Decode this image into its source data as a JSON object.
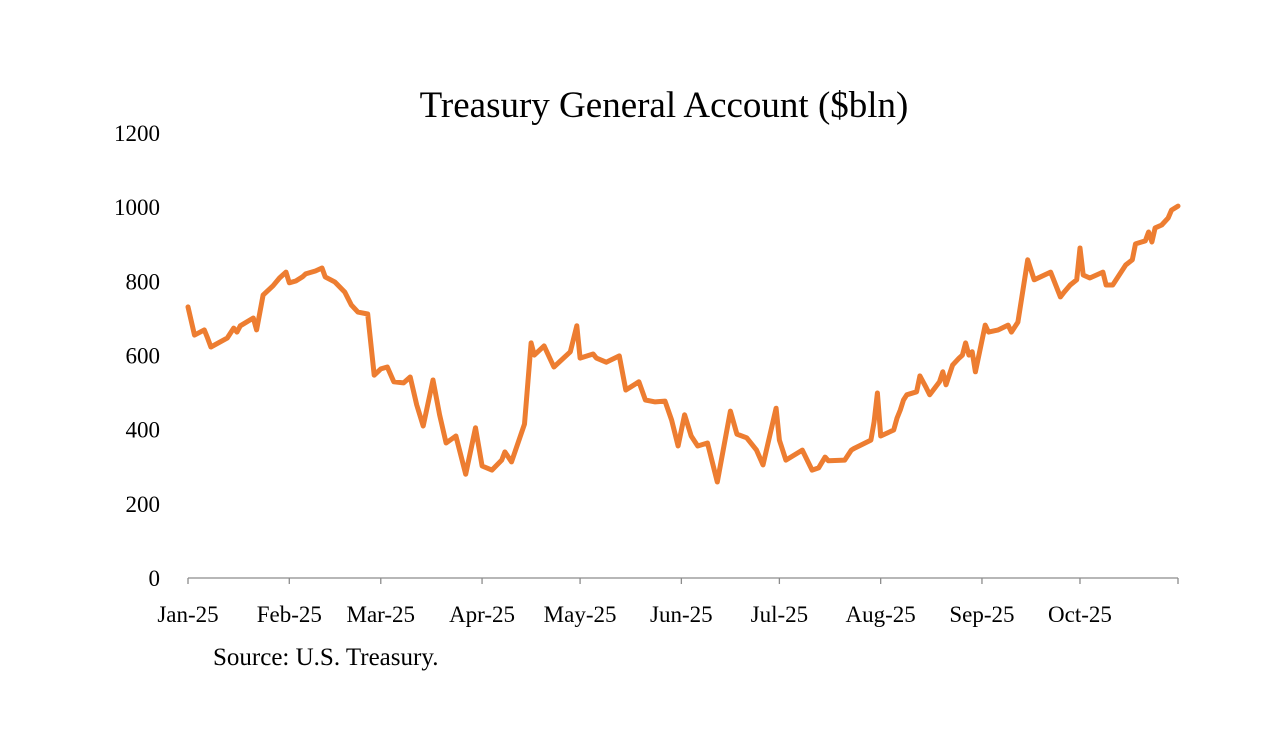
{
  "chart_data": {
    "type": "line",
    "title": "Treasury General Account ($bln)",
    "xlabel": "",
    "ylabel": "",
    "source": "Source: U.S. Treasury.",
    "ylim": [
      0,
      1200
    ],
    "yticks": [
      0,
      200,
      400,
      600,
      800,
      1000,
      1200
    ],
    "xlim": [
      "2025-01-01",
      "2025-10-31"
    ],
    "xticks": [
      {
        "date": "2025-01-01",
        "label": "Jan-25"
      },
      {
        "date": "2025-02-01",
        "label": "Feb-25"
      },
      {
        "date": "2025-03-01",
        "label": "Mar-25"
      },
      {
        "date": "2025-04-01",
        "label": "Apr-25"
      },
      {
        "date": "2025-05-01",
        "label": "May-25"
      },
      {
        "date": "2025-06-01",
        "label": "Jun-25"
      },
      {
        "date": "2025-07-01",
        "label": "Jul-25"
      },
      {
        "date": "2025-08-01",
        "label": "Aug-25"
      },
      {
        "date": "2025-09-01",
        "label": "Sep-25"
      },
      {
        "date": "2025-10-01",
        "label": "Oct-25"
      }
    ],
    "grid": false,
    "legend": "none",
    "line_color": "#ED7D31",
    "series": [
      {
        "points": [
          [
            "2025-01-01",
            731
          ],
          [
            "2025-01-03",
            655
          ],
          [
            "2025-01-06",
            669
          ],
          [
            "2025-01-07",
            647
          ],
          [
            "2025-01-08",
            623
          ],
          [
            "2025-01-13",
            647
          ],
          [
            "2025-01-15",
            674
          ],
          [
            "2025-01-16",
            663
          ],
          [
            "2025-01-17",
            680
          ],
          [
            "2025-01-21",
            701
          ],
          [
            "2025-01-22",
            669
          ],
          [
            "2025-01-24",
            763
          ],
          [
            "2025-01-27",
            788
          ],
          [
            "2025-01-29",
            809
          ],
          [
            "2025-01-30",
            817
          ],
          [
            "2025-01-31",
            825
          ],
          [
            "2025-02-01",
            796
          ],
          [
            "2025-02-03",
            801
          ],
          [
            "2025-02-05",
            812
          ],
          [
            "2025-02-06",
            820
          ],
          [
            "2025-02-09",
            828
          ],
          [
            "2025-02-11",
            836
          ],
          [
            "2025-02-12",
            812
          ],
          [
            "2025-02-15",
            798
          ],
          [
            "2025-02-18",
            771
          ],
          [
            "2025-02-20",
            736
          ],
          [
            "2025-02-22",
            717
          ],
          [
            "2025-02-25",
            712
          ],
          [
            "2025-02-27",
            547
          ],
          [
            "2025-03-01",
            564
          ],
          [
            "2025-03-03",
            569
          ],
          [
            "2025-03-05",
            529
          ],
          [
            "2025-03-08",
            526
          ],
          [
            "2025-03-10",
            542
          ],
          [
            "2025-03-12",
            467
          ],
          [
            "2025-03-14",
            410
          ],
          [
            "2025-03-17",
            534
          ],
          [
            "2025-03-19",
            440
          ],
          [
            "2025-03-21",
            364
          ],
          [
            "2025-03-24",
            383
          ],
          [
            "2025-03-27",
            280
          ],
          [
            "2025-03-30",
            405
          ],
          [
            "2025-04-01",
            302
          ],
          [
            "2025-04-04",
            291
          ],
          [
            "2025-04-07",
            318
          ],
          [
            "2025-04-08",
            340
          ],
          [
            "2025-04-10",
            313
          ],
          [
            "2025-04-14",
            415
          ],
          [
            "2025-04-16",
            634
          ],
          [
            "2025-04-17",
            601
          ],
          [
            "2025-04-20",
            626
          ],
          [
            "2025-04-23",
            569
          ],
          [
            "2025-04-28",
            610
          ],
          [
            "2025-04-30",
            680
          ],
          [
            "2025-05-01",
            593
          ],
          [
            "2025-05-05",
            604
          ],
          [
            "2025-05-06",
            593
          ],
          [
            "2025-05-09",
            582
          ],
          [
            "2025-05-13",
            599
          ],
          [
            "2025-05-15",
            507
          ],
          [
            "2025-05-19",
            529
          ],
          [
            "2025-05-21",
            480
          ],
          [
            "2025-05-24",
            475
          ],
          [
            "2025-05-27",
            477
          ],
          [
            "2025-05-29",
            426
          ],
          [
            "2025-05-31",
            356
          ],
          [
            "2025-06-01",
            399
          ],
          [
            "2025-06-02",
            440
          ],
          [
            "2025-06-04",
            383
          ],
          [
            "2025-06-06",
            356
          ],
          [
            "2025-06-09",
            364
          ],
          [
            "2025-06-12",
            259
          ],
          [
            "2025-06-16",
            450
          ],
          [
            "2025-06-18",
            388
          ],
          [
            "2025-06-21",
            378
          ],
          [
            "2025-06-24",
            345
          ],
          [
            "2025-06-26",
            305
          ],
          [
            "2025-06-30",
            458
          ],
          [
            "2025-07-01",
            372
          ],
          [
            "2025-07-03",
            318
          ],
          [
            "2025-07-08",
            345
          ],
          [
            "2025-07-11",
            291
          ],
          [
            "2025-07-13",
            297
          ],
          [
            "2025-07-15",
            326
          ],
          [
            "2025-07-16",
            316
          ],
          [
            "2025-07-21",
            318
          ],
          [
            "2025-07-23",
            345
          ],
          [
            "2025-07-24",
            350
          ],
          [
            "2025-07-29",
            372
          ],
          [
            "2025-07-30",
            421
          ],
          [
            "2025-07-31",
            499
          ],
          [
            "2025-08-01",
            383
          ],
          [
            "2025-08-05",
            399
          ],
          [
            "2025-08-06",
            431
          ],
          [
            "2025-08-07",
            453
          ],
          [
            "2025-08-08",
            480
          ],
          [
            "2025-08-09",
            494
          ],
          [
            "2025-08-12",
            502
          ],
          [
            "2025-08-13",
            545
          ],
          [
            "2025-08-15",
            512
          ],
          [
            "2025-08-16",
            494
          ],
          [
            "2025-08-19",
            529
          ],
          [
            "2025-08-20",
            556
          ],
          [
            "2025-08-21",
            521
          ],
          [
            "2025-08-23",
            574
          ],
          [
            "2025-08-25",
            593
          ],
          [
            "2025-08-26",
            601
          ],
          [
            "2025-08-27",
            634
          ],
          [
            "2025-08-28",
            601
          ],
          [
            "2025-08-29",
            610
          ],
          [
            "2025-08-30",
            556
          ],
          [
            "2025-09-02",
            682
          ],
          [
            "2025-09-03",
            663
          ],
          [
            "2025-09-06",
            669
          ],
          [
            "2025-09-09",
            682
          ],
          [
            "2025-09-10",
            663
          ],
          [
            "2025-09-12",
            690
          ],
          [
            "2025-09-15",
            858
          ],
          [
            "2025-09-17",
            804
          ],
          [
            "2025-09-22",
            825
          ],
          [
            "2025-09-25",
            758
          ],
          [
            "2025-09-26",
            769
          ],
          [
            "2025-09-28",
            790
          ],
          [
            "2025-09-30",
            804
          ],
          [
            "2025-10-01",
            890
          ],
          [
            "2025-10-02",
            817
          ],
          [
            "2025-10-04",
            809
          ],
          [
            "2025-10-08",
            825
          ],
          [
            "2025-10-09",
            790
          ],
          [
            "2025-10-11",
            790
          ],
          [
            "2025-10-15",
            844
          ],
          [
            "2025-10-17",
            858
          ],
          [
            "2025-10-18",
            901
          ],
          [
            "2025-10-21",
            909
          ],
          [
            "2025-10-22",
            933
          ],
          [
            "2025-10-23",
            906
          ],
          [
            "2025-10-24",
            944
          ],
          [
            "2025-10-26",
            952
          ],
          [
            "2025-10-28",
            971
          ],
          [
            "2025-10-29",
            992
          ],
          [
            "2025-10-31",
            1003
          ]
        ]
      }
    ]
  }
}
